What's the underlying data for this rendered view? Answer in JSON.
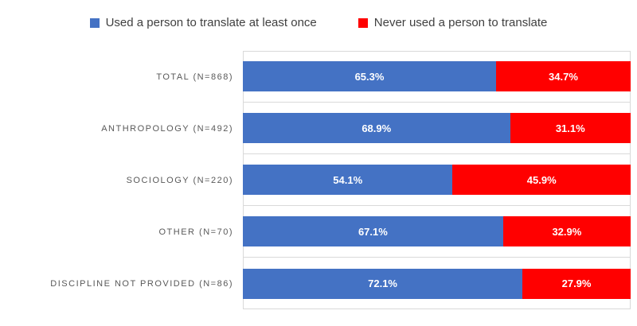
{
  "colors": {
    "series_used": "#4472C4",
    "series_never": "#FF0000",
    "gridline": "#D9D9D9",
    "category_label": "#595959",
    "legend_text": "#404040",
    "data_label": "#FFFFFF",
    "background": "#FFFFFF"
  },
  "legend": {
    "items": [
      {
        "label": "Used a person to translate at least once",
        "color": "#4472C4"
      },
      {
        "label": "Never used a person to translate",
        "color": "#FF0000"
      }
    ]
  },
  "chart_data": {
    "type": "bar",
    "subtype": "100%-stacked-horizontal",
    "title": "",
    "xlabel": "",
    "ylabel": "",
    "xlim": [
      0,
      100
    ],
    "grid": "category-band-separators",
    "legend_position": "top",
    "categories": [
      "TOTAL (N=868)",
      "ANTHROPOLOGY (N=492)",
      "SOCIOLOGY (N=220)",
      "OTHER (N=70)",
      "DISCIPLINE NOT PROVIDED (N=86)"
    ],
    "series": [
      {
        "name": "Used a person to translate at least once",
        "color": "#4472C4",
        "values": [
          65.3,
          68.9,
          54.1,
          67.1,
          72.1
        ]
      },
      {
        "name": "Never used a person to translate",
        "color": "#FF0000",
        "values": [
          34.7,
          31.1,
          45.9,
          32.9,
          27.9
        ]
      }
    ],
    "rows": [
      {
        "category": "TOTAL (N=868)",
        "used": 65.3,
        "never": 34.7,
        "used_label": "65.3%",
        "never_label": "34.7%"
      },
      {
        "category": "ANTHROPOLOGY (N=492)",
        "used": 68.9,
        "never": 31.1,
        "used_label": "68.9%",
        "never_label": "31.1%"
      },
      {
        "category": "SOCIOLOGY (N=220)",
        "used": 54.1,
        "never": 45.9,
        "used_label": "54.1%",
        "never_label": "45.9%"
      },
      {
        "category": "OTHER (N=70)",
        "used": 67.1,
        "never": 32.9,
        "used_label": "67.1%",
        "never_label": "32.9%"
      },
      {
        "category": "DISCIPLINE NOT PROVIDED (N=86)",
        "used": 72.1,
        "never": 27.9,
        "used_label": "72.1%",
        "never_label": "27.9%"
      }
    ]
  }
}
